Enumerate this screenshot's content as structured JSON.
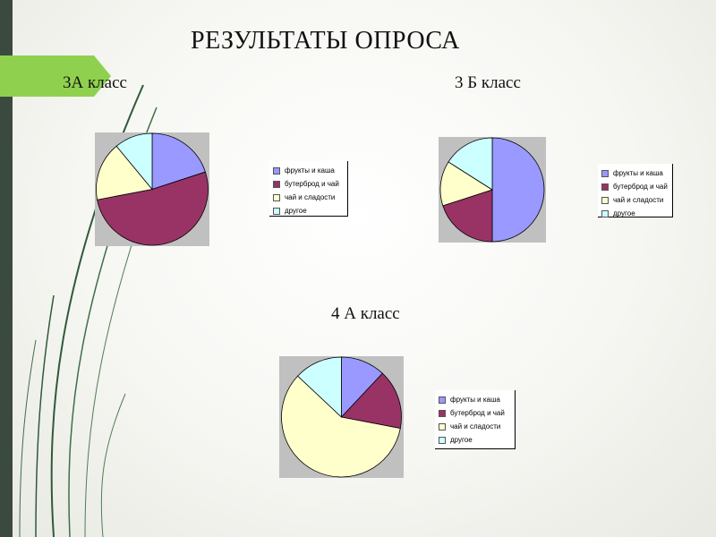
{
  "slide": {
    "title": "РЕЗУЛЬТАТЫ ОПРОСА",
    "accent_color": "#8fd14f",
    "bar_color": "#3a4a3e"
  },
  "legend_labels": [
    "фрукты и каша",
    "бутерброд и чай",
    "чай и сладости",
    "другое"
  ],
  "slice_colors": [
    "#9999ff",
    "#993366",
    "#ffffcc",
    "#ccffff"
  ],
  "chart_data": [
    {
      "type": "pie",
      "title": "3А класс",
      "categories": [
        "фрукты и каша",
        "бутерброд и чай",
        "чай и сладости",
        "другое"
      ],
      "values": [
        20,
        52,
        17,
        11
      ],
      "legend": "right"
    },
    {
      "type": "pie",
      "title": "3 Б класс",
      "categories": [
        "фрукты и каша",
        "бутерброд и чай",
        "чай и сладости",
        "другое"
      ],
      "values": [
        50,
        20,
        14,
        16
      ],
      "legend": "right"
    },
    {
      "type": "pie",
      "title": "4 А класс",
      "categories": [
        "фрукты и каша",
        "бутерброд и чай",
        "чай и сладости",
        "другое"
      ],
      "values": [
        12,
        16,
        59,
        13
      ],
      "legend": "right"
    }
  ]
}
